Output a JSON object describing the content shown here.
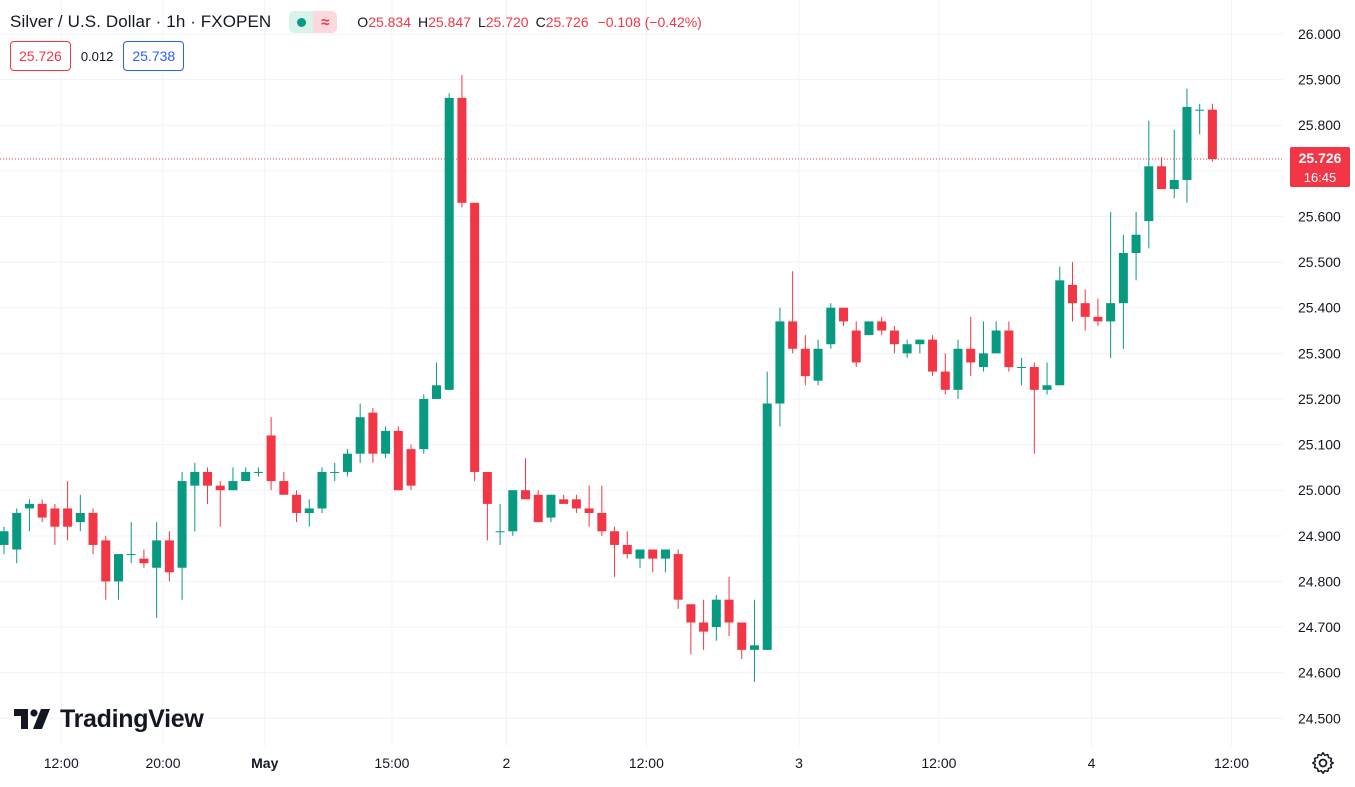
{
  "header": {
    "symbol_title": "Silver / U.S. Dollar · 1h · FXOPEN",
    "status_wave_glyph": "≈",
    "ohlc": {
      "o_label": "O",
      "o_value": "25.834",
      "h_label": "H",
      "h_value": "25.847",
      "l_label": "L",
      "l_value": "25.720",
      "c_label": "C",
      "c_value": "25.726",
      "change": "−0.108 (−0.42%)"
    }
  },
  "quote": {
    "bid": "25.726",
    "spread": "0.012",
    "ask": "25.738"
  },
  "logo": {
    "text": "TradingView"
  },
  "icons": {
    "status": "market-open-dot-icon",
    "wave": "wave-icon",
    "settings": "gear-icon",
    "logo": "tradingview-logo-icon"
  },
  "colors": {
    "up": "#089981",
    "down": "#f23645",
    "grid": "#f0f3fa",
    "text": "#131722",
    "ask": "#2962ff"
  },
  "chart_data": {
    "type": "candlestick",
    "title": "Silver / U.S. Dollar · 1h · FXOPEN",
    "y_axis": {
      "min": 24.45,
      "max": 26.05,
      "ticks": [
        "26.000",
        "25.900",
        "25.800",
        "25.700",
        "25.600",
        "25.500",
        "25.400",
        "25.300",
        "25.200",
        "25.100",
        "25.000",
        "24.900",
        "24.800",
        "24.700",
        "24.600",
        "24.500"
      ],
      "side": "right"
    },
    "x_axis": {
      "ticks": [
        {
          "label": "12:00",
          "index": 4.5
        },
        {
          "label": "20:00",
          "index": 12.5
        },
        {
          "label": "May",
          "index": 20.5
        },
        {
          "label": "15:00",
          "index": 30.5
        },
        {
          "label": "2",
          "index": 39.5
        },
        {
          "label": "12:00",
          "index": 50.5
        },
        {
          "label": "3",
          "index": 62.5
        },
        {
          "label": "12:00",
          "index": 73.5
        },
        {
          "label": "4",
          "index": 85.5
        },
        {
          "label": "12:00",
          "index": 96.5
        }
      ]
    },
    "grid": true,
    "current_price": {
      "value": 25.726,
      "label": "25.726",
      "countdown": "16:45"
    },
    "candles": [
      [
        24.88,
        24.92,
        24.86,
        24.91
      ],
      [
        24.87,
        24.96,
        24.84,
        24.95
      ],
      [
        24.96,
        24.98,
        24.91,
        24.97
      ],
      [
        24.97,
        24.98,
        24.93,
        24.94
      ],
      [
        24.96,
        24.97,
        24.88,
        24.92
      ],
      [
        24.96,
        25.02,
        24.89,
        24.92
      ],
      [
        24.93,
        24.99,
        24.91,
        24.95
      ],
      [
        24.95,
        24.96,
        24.86,
        24.88
      ],
      [
        24.89,
        24.9,
        24.76,
        24.8
      ],
      [
        24.8,
        24.86,
        24.76,
        24.86
      ],
      [
        24.86,
        24.93,
        24.84,
        24.86
      ],
      [
        24.85,
        24.87,
        24.83,
        24.84
      ],
      [
        24.83,
        24.93,
        24.72,
        24.89
      ],
      [
        24.89,
        24.91,
        24.8,
        24.82
      ],
      [
        24.83,
        25.04,
        24.76,
        25.02
      ],
      [
        25.01,
        25.06,
        24.91,
        25.04
      ],
      [
        25.04,
        25.05,
        24.97,
        25.01
      ],
      [
        25.01,
        25.02,
        24.92,
        25.0
      ],
      [
        25.0,
        25.05,
        25.0,
        25.02
      ],
      [
        25.02,
        25.05,
        25.02,
        25.04
      ],
      [
        25.04,
        25.05,
        25.03,
        25.04
      ],
      [
        25.12,
        25.16,
        25.0,
        25.02
      ],
      [
        25.02,
        25.04,
        24.99,
        24.99
      ],
      [
        24.99,
        25.0,
        24.93,
        24.95
      ],
      [
        24.95,
        24.98,
        24.92,
        24.96
      ],
      [
        24.96,
        25.05,
        24.95,
        25.04
      ],
      [
        25.04,
        25.06,
        25.02,
        25.04
      ],
      [
        25.04,
        25.09,
        25.03,
        25.08
      ],
      [
        25.08,
        25.19,
        25.06,
        25.16
      ],
      [
        25.17,
        25.18,
        25.06,
        25.08
      ],
      [
        25.08,
        25.14,
        25.07,
        25.13
      ],
      [
        25.13,
        25.14,
        25.0,
        25.0
      ],
      [
        25.09,
        25.1,
        25.0,
        25.01
      ],
      [
        25.09,
        25.21,
        25.08,
        25.2
      ],
      [
        25.2,
        25.28,
        25.2,
        25.23
      ],
      [
        25.22,
        25.87,
        25.22,
        25.86
      ],
      [
        25.86,
        25.91,
        25.62,
        25.63
      ],
      [
        25.63,
        25.63,
        25.02,
        25.04
      ],
      [
        25.04,
        25.04,
        24.89,
        24.97
      ],
      [
        24.91,
        24.97,
        24.88,
        24.91
      ],
      [
        24.91,
        25.0,
        24.9,
        25.0
      ],
      [
        25.0,
        25.07,
        24.99,
        24.98
      ],
      [
        24.99,
        25.0,
        24.93,
        24.93
      ],
      [
        24.94,
        24.99,
        24.93,
        24.99
      ],
      [
        24.98,
        24.99,
        24.97,
        24.97
      ],
      [
        24.98,
        24.99,
        24.95,
        24.96
      ],
      [
        24.96,
        25.01,
        24.92,
        24.95
      ],
      [
        24.95,
        25.01,
        24.9,
        24.91
      ],
      [
        24.91,
        24.92,
        24.81,
        24.88
      ],
      [
        24.88,
        24.91,
        24.85,
        24.86
      ],
      [
        24.85,
        24.87,
        24.83,
        24.87
      ],
      [
        24.87,
        24.87,
        24.82,
        24.85
      ],
      [
        24.85,
        24.87,
        24.82,
        24.87
      ],
      [
        24.86,
        24.87,
        24.74,
        24.76
      ],
      [
        24.75,
        24.75,
        24.64,
        24.71
      ],
      [
        24.71,
        24.76,
        24.65,
        24.69
      ],
      [
        24.7,
        24.77,
        24.67,
        24.76
      ],
      [
        24.76,
        24.81,
        24.68,
        24.71
      ],
      [
        24.71,
        24.71,
        24.63,
        24.65
      ],
      [
        24.65,
        24.76,
        24.58,
        24.66
      ],
      [
        24.65,
        25.26,
        24.65,
        25.19
      ],
      [
        25.19,
        25.4,
        25.14,
        25.37
      ],
      [
        25.37,
        25.48,
        25.3,
        25.31
      ],
      [
        25.31,
        25.34,
        25.23,
        25.25
      ],
      [
        25.24,
        25.33,
        25.23,
        25.31
      ],
      [
        25.32,
        25.41,
        25.31,
        25.4
      ],
      [
        25.4,
        25.4,
        25.36,
        25.37
      ],
      [
        25.35,
        25.37,
        25.27,
        25.28
      ],
      [
        25.34,
        25.37,
        25.34,
        25.37
      ],
      [
        25.37,
        25.38,
        25.34,
        25.35
      ],
      [
        25.35,
        25.36,
        25.3,
        25.32
      ],
      [
        25.3,
        25.33,
        25.29,
        25.32
      ],
      [
        25.32,
        25.33,
        25.3,
        25.33
      ],
      [
        25.33,
        25.34,
        25.25,
        25.26
      ],
      [
        25.26,
        25.3,
        25.21,
        25.22
      ],
      [
        25.22,
        25.33,
        25.2,
        25.31
      ],
      [
        25.31,
        25.38,
        25.25,
        25.28
      ],
      [
        25.27,
        25.37,
        25.26,
        25.3
      ],
      [
        25.3,
        25.37,
        25.3,
        25.35
      ],
      [
        25.35,
        25.37,
        25.26,
        25.27
      ],
      [
        25.27,
        25.29,
        25.23,
        25.27
      ],
      [
        25.27,
        25.28,
        25.08,
        25.22
      ],
      [
        25.22,
        25.28,
        25.21,
        25.23
      ],
      [
        25.23,
        25.49,
        25.23,
        25.46
      ],
      [
        25.45,
        25.5,
        25.37,
        25.41
      ],
      [
        25.41,
        25.44,
        25.35,
        25.38
      ],
      [
        25.38,
        25.42,
        25.36,
        25.37
      ],
      [
        25.37,
        25.61,
        25.29,
        25.41
      ],
      [
        25.41,
        25.56,
        25.31,
        25.52
      ],
      [
        25.52,
        25.61,
        25.46,
        25.56
      ],
      [
        25.59,
        25.81,
        25.53,
        25.71
      ],
      [
        25.71,
        25.73,
        25.66,
        25.66
      ],
      [
        25.66,
        25.79,
        25.64,
        25.68
      ],
      [
        25.68,
        25.88,
        25.63,
        25.84
      ],
      [
        25.834,
        25.847,
        25.78,
        25.834
      ],
      [
        25.834,
        25.847,
        25.72,
        25.726
      ]
    ]
  }
}
